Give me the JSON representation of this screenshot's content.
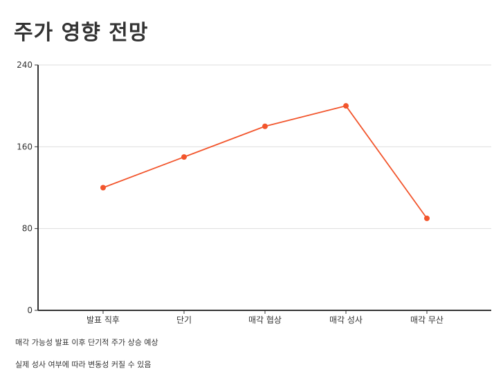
{
  "title": "주가 영향 전망",
  "colors": {
    "line": "#f2552c",
    "grid": "#dddddd",
    "axis": "#333333"
  },
  "notes": [
    "매각 가능성 발표 이후 단기적 주가 상승 예상",
    "실제 성사 여부에 따라 변동성 커질 수 있음"
  ],
  "chart_data": {
    "type": "line",
    "categories": [
      "발표 직후",
      "단기",
      "매각 협상",
      "매각 성사",
      "매각 무산"
    ],
    "values": [
      120,
      150,
      180,
      200,
      90
    ],
    "ylim": [
      0,
      240
    ],
    "yticks": [
      0,
      80,
      160,
      240
    ],
    "xlabel": "",
    "ylabel": "",
    "grid": true
  }
}
